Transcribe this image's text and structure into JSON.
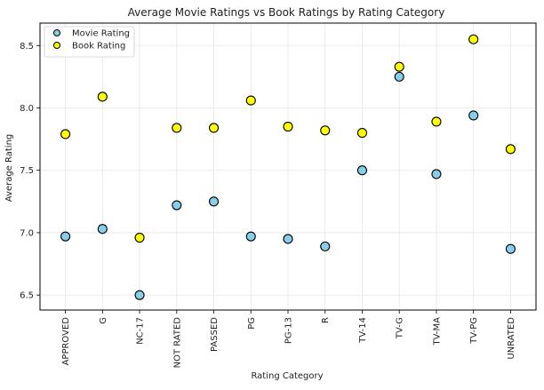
{
  "chart_data": {
    "type": "scatter",
    "title": "Average Movie Ratings vs Book Ratings by Rating Category",
    "xlabel": "Rating Category",
    "ylabel": "Average Rating",
    "categories": [
      "APPROVED",
      "G",
      "NC-17",
      "NOT RATED",
      "PASSED",
      "PG",
      "PG-13",
      "R",
      "TV-14",
      "TV-G",
      "TV-MA",
      "TV-PG",
      "UNRATED"
    ],
    "ylim": [
      6.38,
      8.68
    ],
    "yticks": [
      6.5,
      7.0,
      7.5,
      8.0,
      8.5
    ],
    "ytick_labels": [
      "6.5",
      "7.0",
      "7.5",
      "8.0",
      "8.5"
    ],
    "grid": true,
    "legend_position": "upper-left",
    "series": [
      {
        "name": "Movie Rating",
        "color": "#87ceeb",
        "values": [
          6.97,
          7.03,
          6.5,
          7.22,
          7.25,
          6.97,
          6.95,
          6.89,
          7.5,
          8.25,
          7.47,
          7.94,
          6.87
        ]
      },
      {
        "name": "Book Rating",
        "color": "#ffff00",
        "values": [
          7.79,
          8.09,
          6.96,
          7.84,
          7.84,
          8.06,
          7.85,
          7.82,
          7.8,
          8.33,
          7.89,
          8.55,
          7.67
        ]
      }
    ],
    "marker_edge_color": "#000000"
  }
}
